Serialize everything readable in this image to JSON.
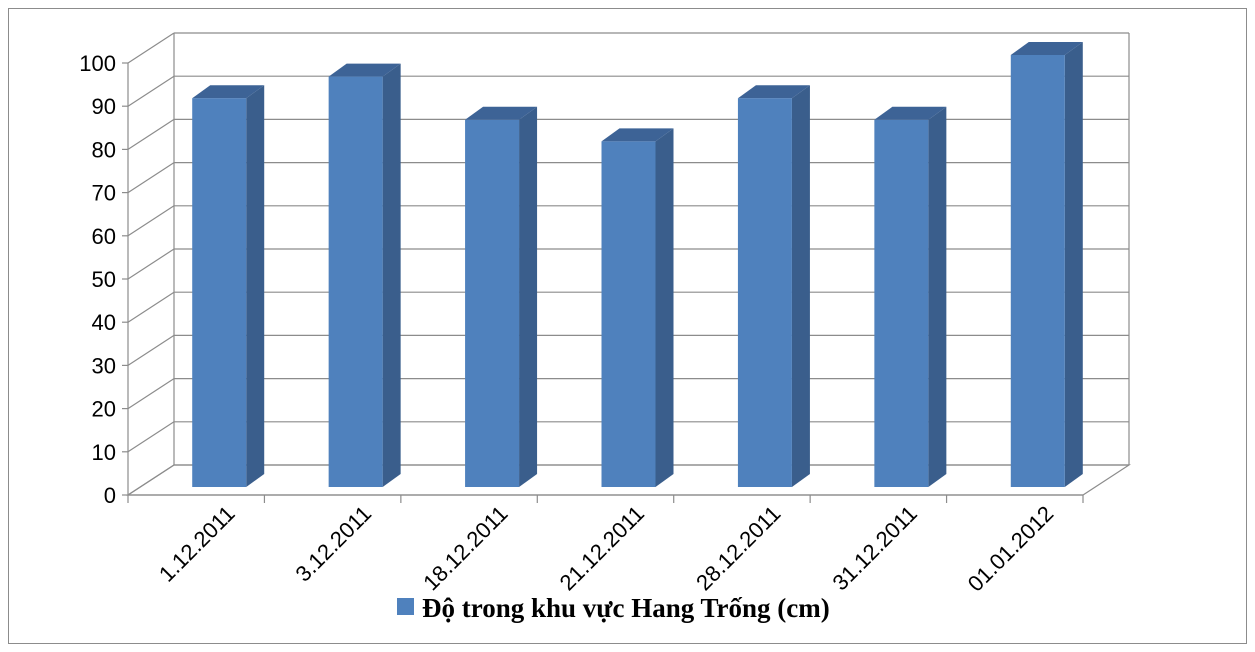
{
  "chart_data": {
    "type": "bar",
    "style": "3d-column",
    "categories": [
      "1.12.2011",
      "3.12.2011",
      "18.12.2011",
      "21.12.2011",
      "28.12.2011",
      "31.12.2011",
      "01.01.2012"
    ],
    "series": [
      {
        "name": "Độ trong khu vực Hang Trống (cm)",
        "values": [
          90,
          95,
          85,
          80,
          90,
          85,
          100
        ],
        "color": "#4f81bd"
      }
    ],
    "yticks": [
      0,
      10,
      20,
      30,
      40,
      50,
      60,
      70,
      80,
      90,
      100
    ],
    "ylim": [
      0,
      100
    ],
    "grid": true,
    "legend_position": "bottom",
    "colors": {
      "bar_front": "#4f81bd",
      "bar_side": "#3a5e8c",
      "bar_top": "#3d6396",
      "gridline": "#8c8c8c",
      "border": "#8c8c8c"
    }
  }
}
